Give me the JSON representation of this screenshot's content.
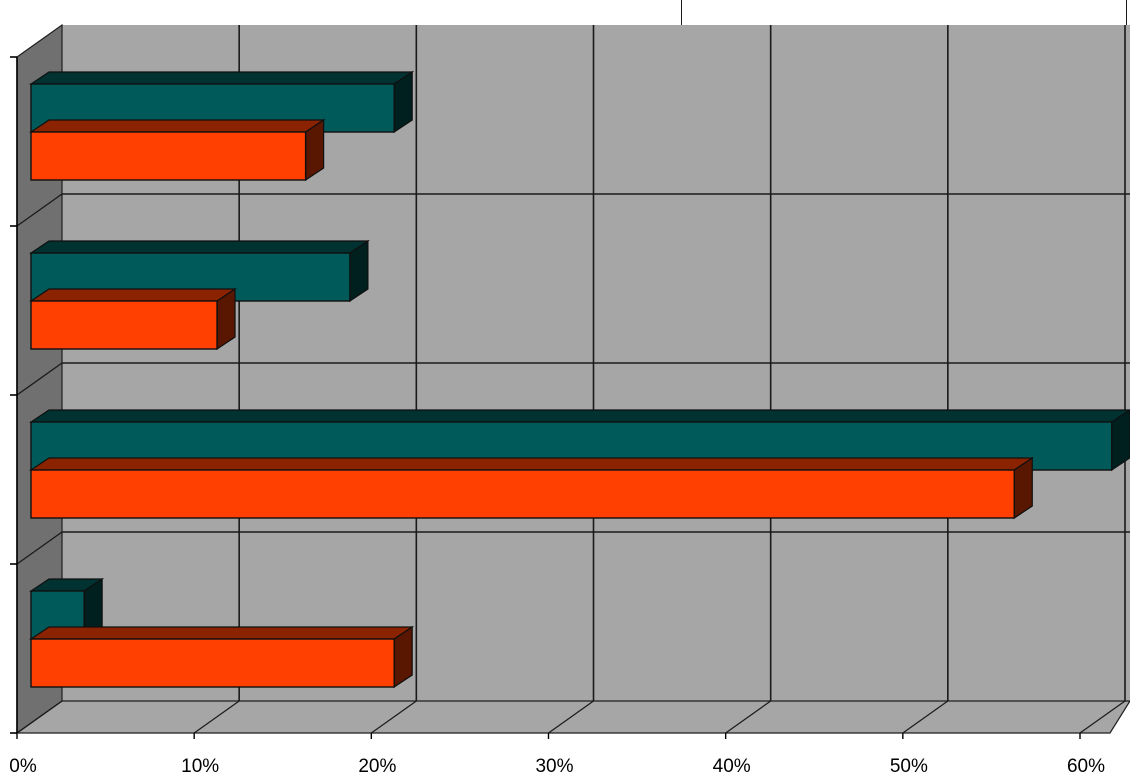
{
  "chart_data": {
    "type": "bar",
    "orientation": "horizontal",
    "style": "3d",
    "categories": [
      "",
      "",
      "",
      ""
    ],
    "series": [
      {
        "color": "#005a5a",
        "values": [
          3,
          61,
          18,
          20.5
        ]
      },
      {
        "color": "#ff4000",
        "values": [
          20.5,
          55.5,
          10.5,
          15.5
        ]
      }
    ],
    "xlim": [
      0,
      60
    ],
    "x_ticks": [
      0,
      10,
      20,
      30,
      40,
      50,
      60
    ],
    "x_tick_labels": [
      "0%",
      "10%",
      "20%",
      "30%",
      "40%",
      "50%",
      "60%"
    ],
    "grid": true,
    "plot_background": "#a6a6a6",
    "side_wall_color": "#707070",
    "legend": "top-right"
  }
}
